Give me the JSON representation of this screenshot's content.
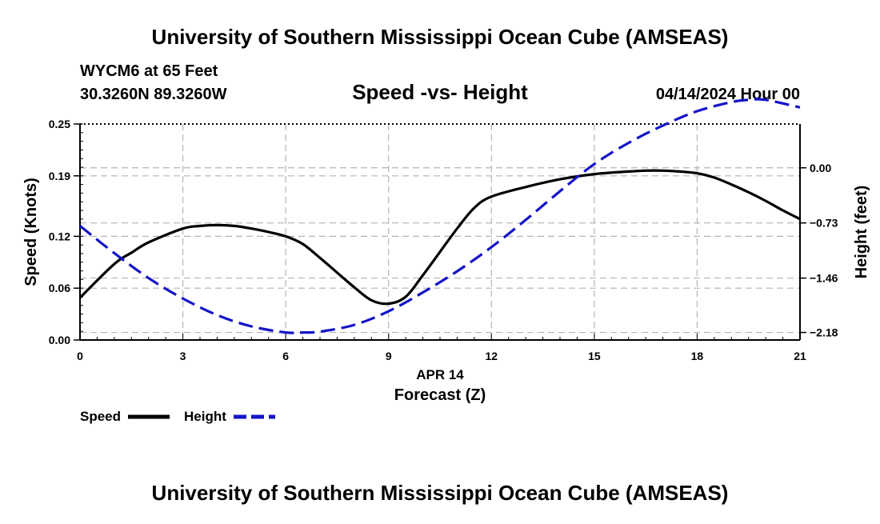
{
  "header": {
    "title": "University of Southern Mississippi Ocean Cube (AMSEAS)",
    "station": "WYCM6 at 65 Feet",
    "coords": "30.3260N  89.3260W",
    "chart_title": "Speed -vs- Height",
    "date": "04/14/2024 Hour 00"
  },
  "footer": {
    "title": "University of Southern Mississippi Ocean Cube (AMSEAS)"
  },
  "colors": {
    "speed": "#000000",
    "height": "#1414c8",
    "grid": "#b4b4b4"
  },
  "chart_data": {
    "type": "line",
    "title": "Speed -vs- Height",
    "xlabel": "Forecast (Z)",
    "xlabel_date": "APR 14",
    "ylabel_left": "Speed (Knots)",
    "ylabel_right": "Height (feet)",
    "xlim": [
      0,
      21
    ],
    "x_ticks": [
      0,
      3,
      6,
      9,
      12,
      15,
      18,
      21
    ],
    "ylim_left": [
      0,
      0.25
    ],
    "y_ticks_left": [
      0.0,
      0.06,
      0.12,
      0.19,
      0.25
    ],
    "y_tick_labels_left": [
      "0.00",
      "0.06",
      "0.12",
      "0.19",
      "0.25"
    ],
    "ylim_right": [
      -2.28,
      0.58
    ],
    "y_ticks_right": [
      0.0,
      -0.73,
      -1.46,
      -2.18
    ],
    "y_tick_labels_right": [
      "0.00",
      "−0.73",
      "−1.46",
      "−2.18"
    ],
    "series": [
      {
        "name": "Speed",
        "axis": "left",
        "style": "solid",
        "x": [
          0,
          1,
          1.5,
          2,
          3,
          3.5,
          4,
          4.5,
          5,
          5.5,
          6,
          6.5,
          7,
          7.5,
          8,
          8.5,
          9,
          9.5,
          10,
          10.5,
          11,
          11.5,
          12,
          13,
          14,
          15,
          16,
          16.5,
          17,
          17.5,
          18,
          18.5,
          19,
          19.5,
          20,
          20.5,
          21
        ],
        "values": [
          0.049,
          0.088,
          0.101,
          0.113,
          0.129,
          0.132,
          0.133,
          0.132,
          0.129,
          0.125,
          0.12,
          0.111,
          0.095,
          0.078,
          0.061,
          0.046,
          0.042,
          0.05,
          0.075,
          0.102,
          0.129,
          0.153,
          0.166,
          0.177,
          0.186,
          0.192,
          0.195,
          0.196,
          0.196,
          0.195,
          0.193,
          0.188,
          0.18,
          0.171,
          0.161,
          0.15,
          0.14
        ]
      },
      {
        "name": "Height",
        "axis": "right",
        "style": "dashed",
        "x": [
          0,
          1,
          2,
          3,
          4,
          5,
          6,
          6.5,
          7,
          8,
          9,
          10,
          11,
          12,
          13,
          14,
          15,
          16,
          17,
          18,
          19,
          19.5,
          20,
          21
        ],
        "values": [
          -0.77,
          -1.13,
          -1.46,
          -1.73,
          -1.95,
          -2.1,
          -2.18,
          -2.18,
          -2.17,
          -2.08,
          -1.9,
          -1.65,
          -1.37,
          -1.05,
          -0.69,
          -0.31,
          0.05,
          0.33,
          0.56,
          0.75,
          0.87,
          0.9,
          0.9,
          0.8
        ]
      }
    ],
    "legend": [
      {
        "label": "Speed"
      },
      {
        "label": "Height"
      }
    ],
    "legend_position": "bottom-left"
  }
}
